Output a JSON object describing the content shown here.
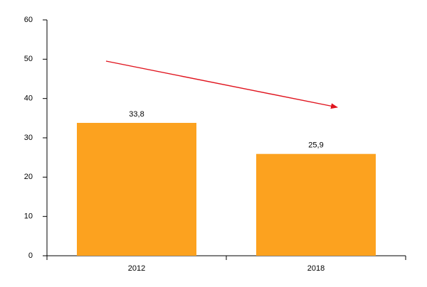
{
  "chart_data": {
    "type": "bar",
    "categories": [
      "2012",
      "2018"
    ],
    "values": [
      33.8,
      25.9
    ],
    "value_labels": [
      "33,8",
      "25,9"
    ],
    "color": "#fca21f",
    "ylim": [
      0,
      60
    ],
    "yticks": [
      0,
      10,
      20,
      30,
      40,
      50,
      60
    ],
    "grid": false
  }
}
